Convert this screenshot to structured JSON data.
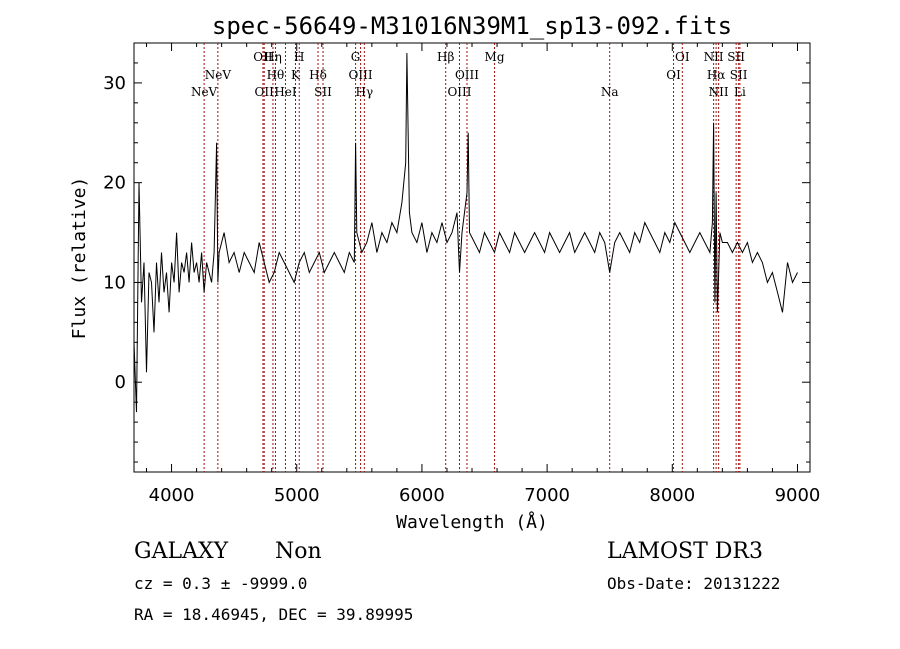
{
  "chart_data": {
    "type": "line",
    "title": "spec-56649-M31016N39M1_sp13-092.fits",
    "xlabel": "Wavelength (Å)",
    "ylabel": "Flux (relative)",
    "xlim": [
      3700,
      9100
    ],
    "ylim": [
      -9,
      34
    ],
    "xticks": [
      4000,
      5000,
      6000,
      7000,
      8000,
      9000
    ],
    "yticks": [
      0,
      10,
      20,
      30
    ],
    "reference_lines": [
      {
        "label": "NeV",
        "wavelength": 4260,
        "row": 2
      },
      {
        "label": "NeV",
        "wavelength": 4370,
        "row": 1
      },
      {
        "label": "OII",
        "wavelength": 4730,
        "row": 0
      },
      {
        "label": "OII",
        "wavelength": 4740,
        "row": 2
      },
      {
        "label": "Hη",
        "wavelength": 4810,
        "row": 0
      },
      {
        "label": "Hθ",
        "wavelength": 4830,
        "row": 1
      },
      {
        "label": "HeI",
        "wavelength": 4910,
        "row": 2
      },
      {
        "label": "H",
        "wavelength": 5020,
        "row": 0
      },
      {
        "label": "K",
        "wavelength": 4990,
        "row": 1
      },
      {
        "label": "Hδ",
        "wavelength": 5170,
        "row": 1
      },
      {
        "label": "SII",
        "wavelength": 5210,
        "row": 2
      },
      {
        "label": "G",
        "wavelength": 5470,
        "row": 0
      },
      {
        "label": "OIII",
        "wavelength": 5510,
        "row": 1
      },
      {
        "label": "Hγ",
        "wavelength": 5540,
        "row": 2
      },
      {
        "label": "Hβ",
        "wavelength": 6190,
        "row": 0
      },
      {
        "label": "OIII",
        "wavelength": 6300,
        "row": 2
      },
      {
        "label": "OIII",
        "wavelength": 6360,
        "row": 1
      },
      {
        "label": "Mg",
        "wavelength": 6580,
        "row": 0
      },
      {
        "label": "Na",
        "wavelength": 7500,
        "row": 2
      },
      {
        "label": "OI",
        "wavelength": 8010,
        "row": 1
      },
      {
        "label": "OI",
        "wavelength": 8080,
        "row": 0
      },
      {
        "label": "NII",
        "wavelength": 8330,
        "row": 0
      },
      {
        "label": "Hα",
        "wavelength": 8350,
        "row": 1
      },
      {
        "label": "NII",
        "wavelength": 8370,
        "row": 2
      },
      {
        "label": "SII",
        "wavelength": 8510,
        "row": 0
      },
      {
        "label": "SII",
        "wavelength": 8530,
        "row": 1
      },
      {
        "label": "Li",
        "wavelength": 8540,
        "row": 2
      }
    ],
    "series": [
      {
        "name": "spectrum",
        "x": [
          3700,
          3720,
          3740,
          3760,
          3780,
          3800,
          3820,
          3840,
          3860,
          3880,
          3900,
          3920,
          3940,
          3960,
          3980,
          4000,
          4020,
          4040,
          4060,
          4080,
          4100,
          4120,
          4140,
          4160,
          4180,
          4200,
          4220,
          4240,
          4260,
          4280,
          4300,
          4320,
          4340,
          4360,
          4370,
          4380,
          4420,
          4460,
          4500,
          4540,
          4580,
          4620,
          4660,
          4700,
          4740,
          4780,
          4820,
          4860,
          4900,
          4940,
          4980,
          5020,
          5060,
          5100,
          5140,
          5180,
          5220,
          5260,
          5300,
          5340,
          5380,
          5420,
          5460,
          5470,
          5480,
          5520,
          5560,
          5600,
          5640,
          5680,
          5720,
          5760,
          5800,
          5840,
          5870,
          5880,
          5900,
          5920,
          5960,
          6000,
          6040,
          6080,
          6120,
          6160,
          6200,
          6240,
          6280,
          6300,
          6320,
          6360,
          6370,
          6380,
          6420,
          6460,
          6500,
          6540,
          6580,
          6620,
          6660,
          6700,
          6740,
          6780,
          6820,
          6860,
          6900,
          6940,
          6980,
          7020,
          7060,
          7100,
          7140,
          7180,
          7220,
          7260,
          7300,
          7340,
          7380,
          7420,
          7460,
          7500,
          7540,
          7580,
          7620,
          7660,
          7700,
          7740,
          7780,
          7820,
          7860,
          7900,
          7940,
          7980,
          8020,
          8060,
          8100,
          8140,
          8180,
          8220,
          8260,
          8300,
          8320,
          8330,
          8340,
          8350,
          8360,
          8380,
          8400,
          8440,
          8480,
          8520,
          8560,
          8600,
          8640,
          8680,
          8720,
          8760,
          8800,
          8840,
          8880,
          8920,
          8960,
          9000
        ],
        "y": [
          4,
          -3,
          20,
          8,
          12,
          1,
          11,
          10,
          5,
          12,
          8,
          13,
          9,
          11,
          7,
          12,
          10,
          15,
          9,
          12,
          11,
          13,
          10,
          14,
          11,
          12,
          10,
          13,
          9,
          12,
          11,
          10,
          13,
          24,
          10,
          13,
          15,
          12,
          13,
          11,
          13,
          12,
          11,
          14,
          12,
          10,
          11,
          13,
          12,
          11,
          10,
          12,
          13,
          11,
          12,
          13,
          11,
          12,
          13,
          12,
          11,
          13,
          12,
          24,
          15,
          13,
          14,
          16,
          13,
          15,
          14,
          16,
          15,
          18,
          22,
          33,
          17,
          15,
          14,
          16,
          13,
          15,
          14,
          16,
          14,
          15,
          17,
          11,
          15,
          19,
          25,
          15,
          14,
          13,
          15,
          14,
          13,
          15,
          14,
          13,
          15,
          14,
          13,
          14,
          15,
          14,
          13,
          15,
          14,
          13,
          14,
          15,
          13,
          14,
          15,
          14,
          13,
          15,
          14,
          11,
          14,
          15,
          14,
          13,
          15,
          14,
          16,
          15,
          14,
          13,
          15,
          14,
          16,
          15,
          14,
          13,
          14,
          15,
          14,
          13,
          16,
          26,
          8,
          19,
          7,
          15,
          14,
          14,
          13,
          14,
          13,
          14,
          12,
          13,
          12,
          10,
          11,
          9,
          7,
          12,
          10,
          11
        ]
      }
    ],
    "footer": {
      "left_title": "GALAXY",
      "left_subtitle": "Non",
      "right_title": "LAMOST DR3",
      "cz": "cz = 0.3 ± -9999.0",
      "coords": "RA =  18.46945, DEC =  39.89995",
      "obs_date": "Obs-Date: 20131222"
    }
  }
}
